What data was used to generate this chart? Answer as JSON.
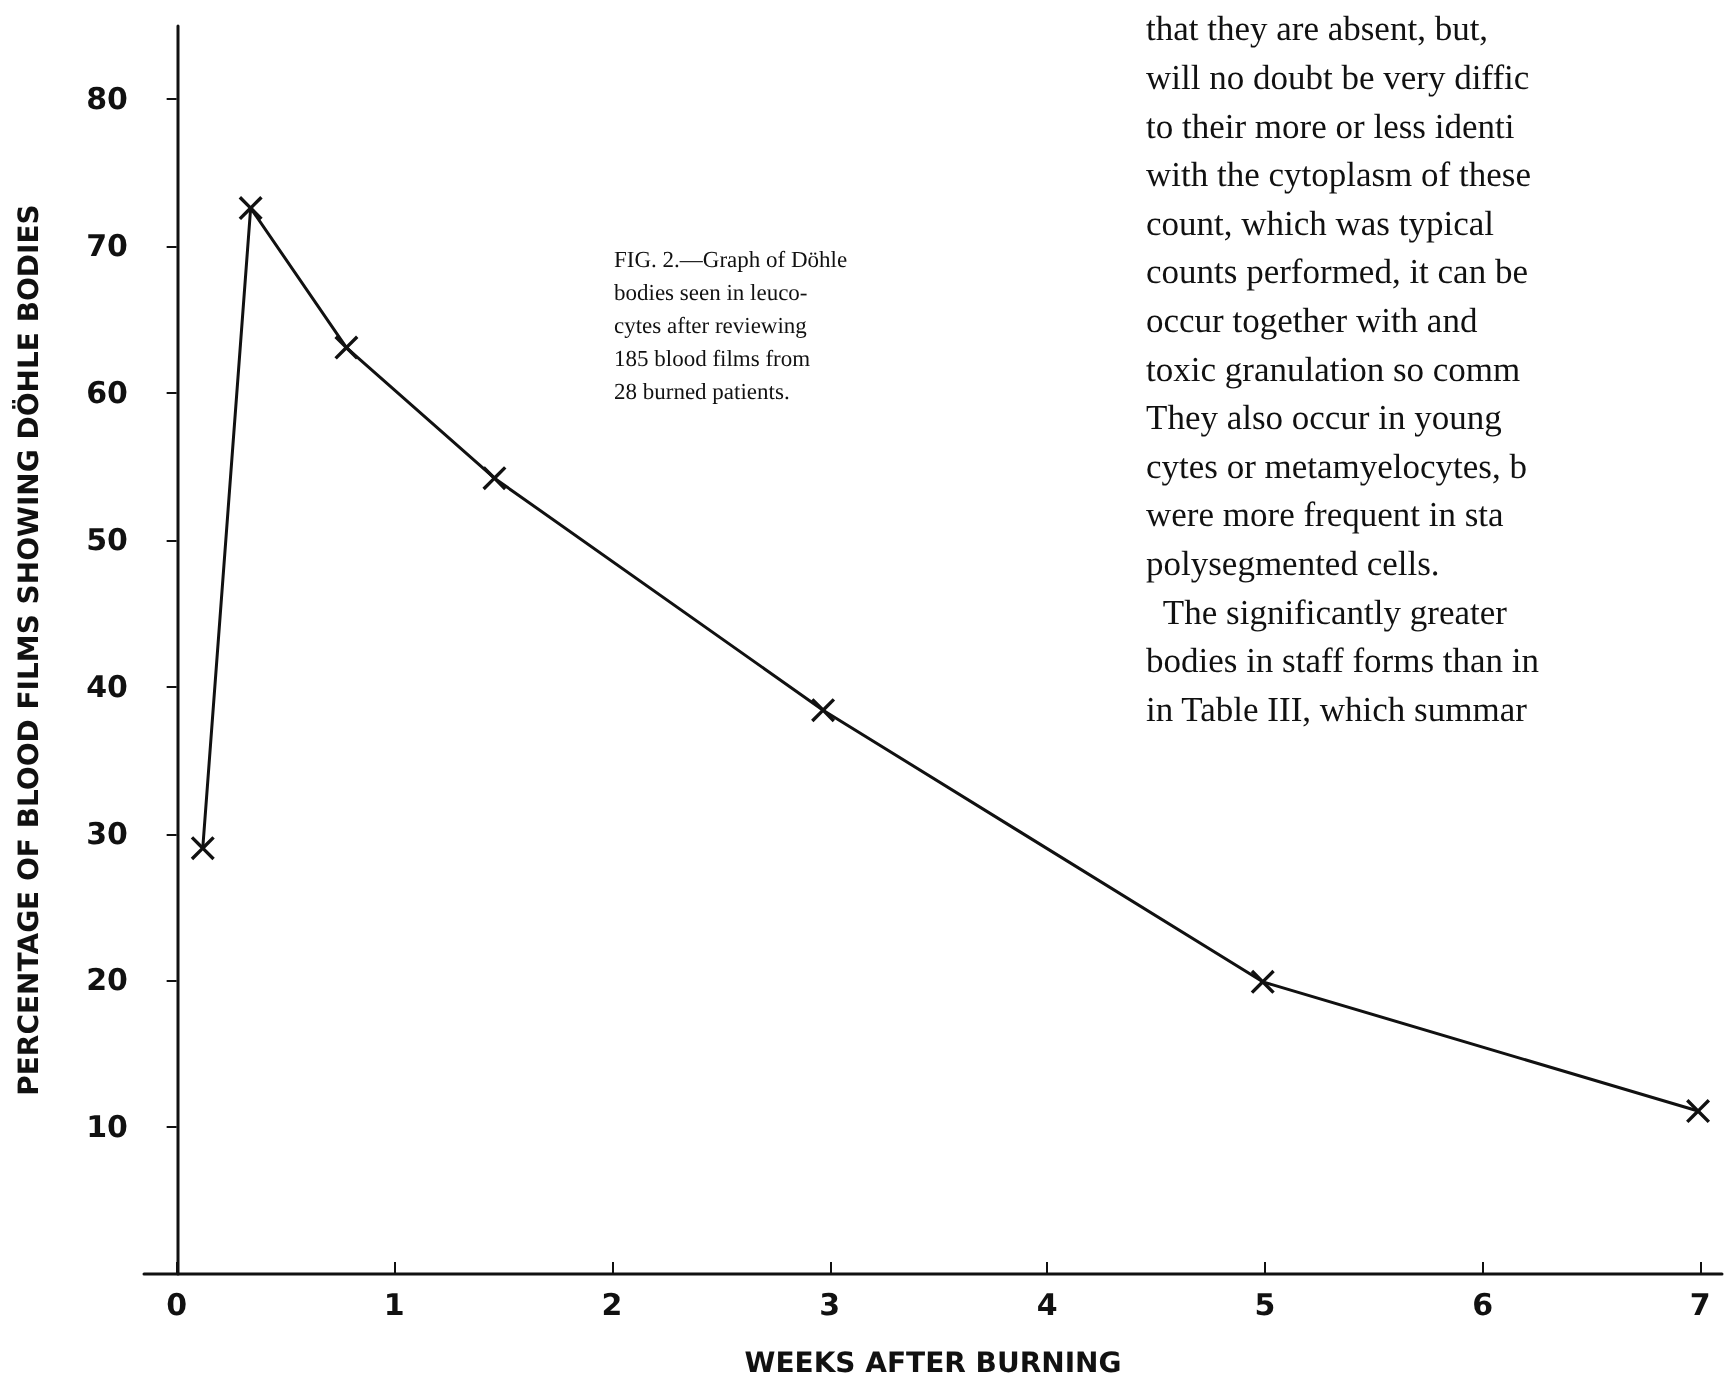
{
  "chart_data": {
    "type": "line",
    "xlabel": "WEEKS AFTER BURNING",
    "ylabel": "PERCENTAGE OF BLOOD FILMS SHOWING DÖHLE BODIES",
    "x": [
      0.12,
      0.34,
      0.78,
      1.46,
      2.97,
      4.99,
      6.99
    ],
    "series": [
      {
        "color": "#111111",
        "values": [
          29,
          72.6,
          63.1,
          54.2,
          38.4,
          19.9,
          11.1
        ]
      }
    ],
    "xlim": [
      -0.15,
      7.1
    ],
    "xticks": [
      0,
      1,
      2,
      3,
      4,
      5,
      6,
      7
    ],
    "ylim": [
      0,
      85
    ],
    "yticks": [
      10,
      20,
      30,
      40,
      50,
      60,
      70,
      80
    ],
    "marker": "cross",
    "line_style": "solid",
    "annotations": [
      "FIG. 2.—Graph of Döhle\nbodies seen in leuco-\ncytes after reviewing\n185 blood films from\n28 burned patients.",
      "that they are absent, but,\nwill no doubt be very diffic\nto their more or less identi\nwith the cytoplasm of these\ncount, which was typical\ncounts performed, it can be\noccur together with and\ntoxic granulation so comm\nThey also occur in young\ncytes or metamyelocytes, b\nwere more frequent in sta\npolysegmented cells.\n  The significantly greater\nbodies in staff forms than in\nin Table III, which summar"
    ]
  }
}
